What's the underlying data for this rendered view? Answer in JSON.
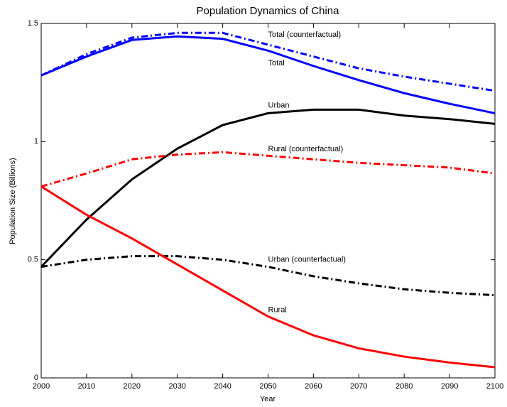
{
  "chart_data": {
    "type": "line",
    "title": "Population Dynamics of China",
    "xlabel": "Year",
    "ylabel": "Population Size (Billions)",
    "x": [
      2000,
      2010,
      2020,
      2030,
      2040,
      2050,
      2060,
      2070,
      2080,
      2090,
      2100
    ],
    "xlim": [
      2000,
      2100
    ],
    "xticks": [
      2000,
      2010,
      2020,
      2030,
      2040,
      2050,
      2060,
      2070,
      2080,
      2090,
      2100
    ],
    "ylim": [
      0,
      1.5
    ],
    "yticks": [
      0,
      0.5,
      1,
      1.5
    ],
    "series": [
      {
        "name": "Total (counterfactual)",
        "color": "#0000ff",
        "linestyle": "dashdot",
        "values": [
          1.28,
          1.37,
          1.44,
          1.46,
          1.46,
          1.41,
          1.36,
          1.31,
          1.275,
          1.245,
          1.215
        ]
      },
      {
        "name": "Total",
        "color": "#0000ff",
        "linestyle": "solid",
        "values": [
          1.28,
          1.36,
          1.43,
          1.445,
          1.435,
          1.385,
          1.32,
          1.26,
          1.205,
          1.16,
          1.12
        ]
      },
      {
        "name": "Urban",
        "color": "#000000",
        "linestyle": "solid",
        "values": [
          0.47,
          0.67,
          0.84,
          0.97,
          1.07,
          1.12,
          1.135,
          1.135,
          1.11,
          1.095,
          1.075
        ]
      },
      {
        "name": "Rural (counterfactual)",
        "color": "#ff0000",
        "linestyle": "dashdot",
        "values": [
          0.81,
          0.865,
          0.925,
          0.945,
          0.955,
          0.94,
          0.925,
          0.91,
          0.9,
          0.89,
          0.865
        ]
      },
      {
        "name": "Urban (counterfactual)",
        "color": "#000000",
        "linestyle": "dashdot",
        "values": [
          0.47,
          0.5,
          0.515,
          0.515,
          0.5,
          0.47,
          0.43,
          0.4,
          0.375,
          0.36,
          0.35
        ]
      },
      {
        "name": "Rural",
        "color": "#ff0000",
        "linestyle": "solid",
        "values": [
          0.81,
          0.69,
          0.59,
          0.48,
          0.37,
          0.26,
          0.18,
          0.125,
          0.09,
          0.065,
          0.045
        ]
      }
    ]
  }
}
